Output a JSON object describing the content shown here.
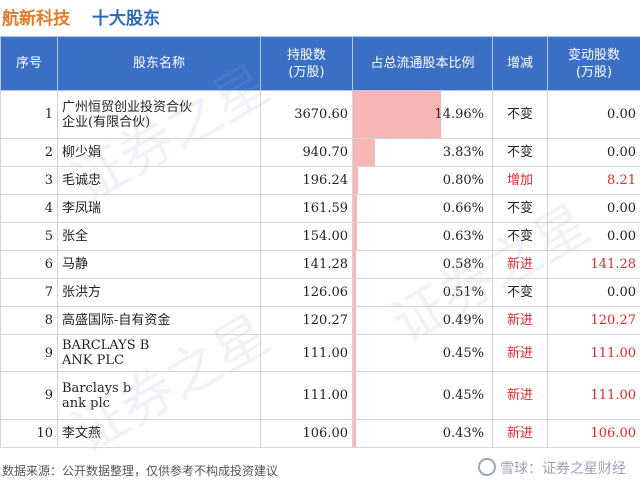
{
  "title": {
    "company": "航新科技",
    "subtitle": "十大股东"
  },
  "columns": [
    "序号",
    "股东名称",
    "持股数\n(万股)",
    "占总流通股本比例",
    "增减",
    "变动股数\n(万股)"
  ],
  "rows": [
    {
      "rank": "1",
      "name": "广州恒贸创业投资合伙\n企业(有限合伙)",
      "shares": "3670.60",
      "pct": "14.96%",
      "pct_value": 14.96,
      "change": "不变",
      "delta": "0.00",
      "up": false
    },
    {
      "rank": "2",
      "name": "柳少娟",
      "shares": "940.70",
      "pct": "3.83%",
      "pct_value": 3.83,
      "change": "不变",
      "delta": "0.00",
      "up": false
    },
    {
      "rank": "3",
      "name": "毛诚忠",
      "shares": "196.24",
      "pct": "0.80%",
      "pct_value": 0.8,
      "change": "增加",
      "delta": "8.21",
      "up": true
    },
    {
      "rank": "4",
      "name": "李凤瑞",
      "shares": "161.59",
      "pct": "0.66%",
      "pct_value": 0.66,
      "change": "不变",
      "delta": "0.00",
      "up": false
    },
    {
      "rank": "5",
      "name": "张全",
      "shares": "154.00",
      "pct": "0.63%",
      "pct_value": 0.63,
      "change": "不变",
      "delta": "0.00",
      "up": false
    },
    {
      "rank": "6",
      "name": "马静",
      "shares": "141.28",
      "pct": "0.58%",
      "pct_value": 0.58,
      "change": "新进",
      "delta": "141.28",
      "up": true
    },
    {
      "rank": "7",
      "name": "张洪方",
      "shares": "126.06",
      "pct": "0.51%",
      "pct_value": 0.51,
      "change": "不变",
      "delta": "0.00",
      "up": false
    },
    {
      "rank": "8",
      "name": "高盛国际-自有资金",
      "shares": "120.27",
      "pct": "0.49%",
      "pct_value": 0.49,
      "change": "新进",
      "delta": "120.27",
      "up": true
    },
    {
      "rank": "9",
      "name": "BARCLAYS B\nANK PLC",
      "shares": "111.00",
      "pct": "0.45%",
      "pct_value": 0.45,
      "change": "新进",
      "delta": "111.00",
      "up": true
    },
    {
      "rank": "9",
      "name": "Barclays b\nank plc",
      "shares": "111.00",
      "pct": "0.45%",
      "pct_value": 0.45,
      "change": "新进",
      "delta": "111.00",
      "up": true
    },
    {
      "rank": "10",
      "name": "李文燕",
      "shares": "106.00",
      "pct": "0.43%",
      "pct_value": 0.43,
      "change": "新进",
      "delta": "106.00",
      "up": true
    }
  ],
  "footer": {
    "source": "数据来源：公开数据整理，仅供参考不构成投资建议",
    "brand": "雪球：证券之星财经"
  },
  "watermark": "证券之星",
  "colors": {
    "header_bg": "#3b6fc6",
    "bar": "#f7b6b6",
    "accent_up": "#d92b2b",
    "title_orange": "#e07b2b",
    "title_blue": "#2e6bbf"
  }
}
